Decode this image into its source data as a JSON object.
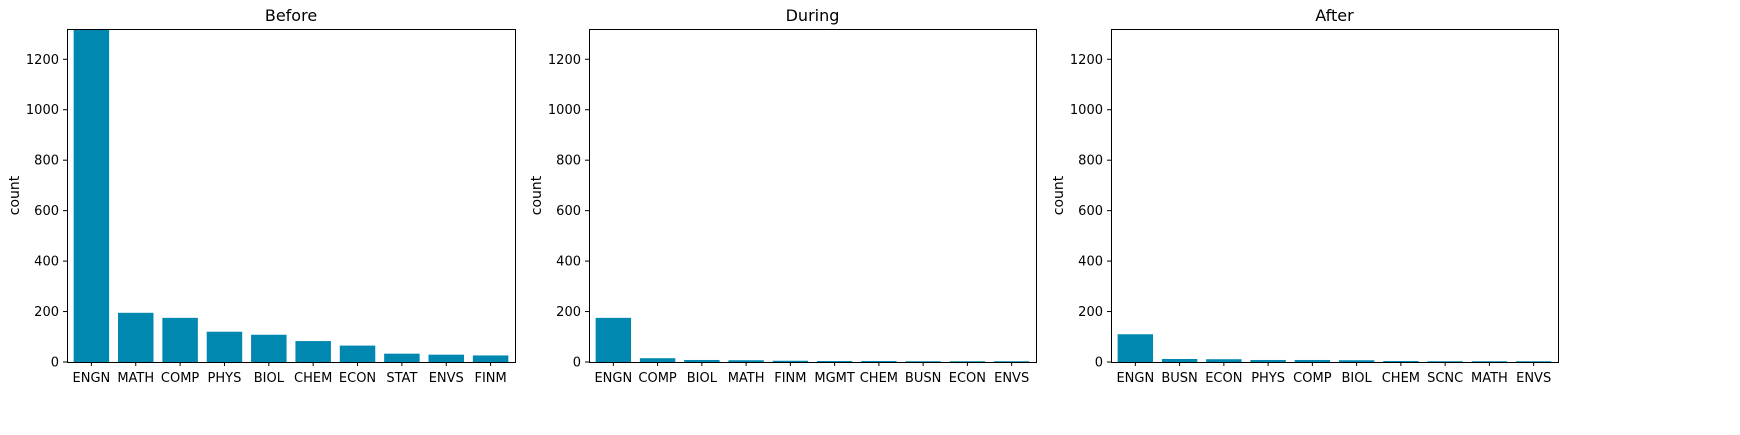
{
  "chart_data": [
    {
      "type": "bar",
      "title": "Before",
      "ylabel": "count",
      "xlabel": "",
      "ylim": [
        0,
        1320
      ],
      "yticks": [
        0,
        200,
        400,
        600,
        800,
        1000,
        1200
      ],
      "categories": [
        "ENGN",
        "MATH",
        "COMP",
        "PHYS",
        "BIOL",
        "CHEM",
        "ECON",
        "STAT",
        "ENVS",
        "FINM"
      ],
      "values": [
        1316,
        195,
        175,
        120,
        108,
        83,
        65,
        33,
        29,
        26
      ],
      "color": "#0088b0",
      "grid": false
    },
    {
      "type": "bar",
      "title": "During",
      "ylabel": "count",
      "xlabel": "",
      "ylim": [
        0,
        1320
      ],
      "yticks": [
        0,
        200,
        400,
        600,
        800,
        1000,
        1200
      ],
      "categories": [
        "ENGN",
        "COMP",
        "BIOL",
        "MATH",
        "FINM",
        "MGMT",
        "CHEM",
        "BUSN",
        "ECON",
        "ENVS"
      ],
      "values": [
        175,
        15,
        8,
        7,
        5,
        4,
        4,
        3,
        3,
        3
      ],
      "color": "#0088b0",
      "grid": false
    },
    {
      "type": "bar",
      "title": "After",
      "ylabel": "count",
      "xlabel": "",
      "ylim": [
        0,
        1320
      ],
      "yticks": [
        0,
        200,
        400,
        600,
        800,
        1000,
        1200
      ],
      "categories": [
        "ENGN",
        "BUSN",
        "ECON",
        "PHYS",
        "COMP",
        "BIOL",
        "CHEM",
        "SCNC",
        "MATH",
        "ENVS"
      ],
      "values": [
        110,
        12,
        11,
        8,
        8,
        7,
        4,
        3,
        3,
        3
      ],
      "color": "#0088b0",
      "grid": false
    }
  ]
}
